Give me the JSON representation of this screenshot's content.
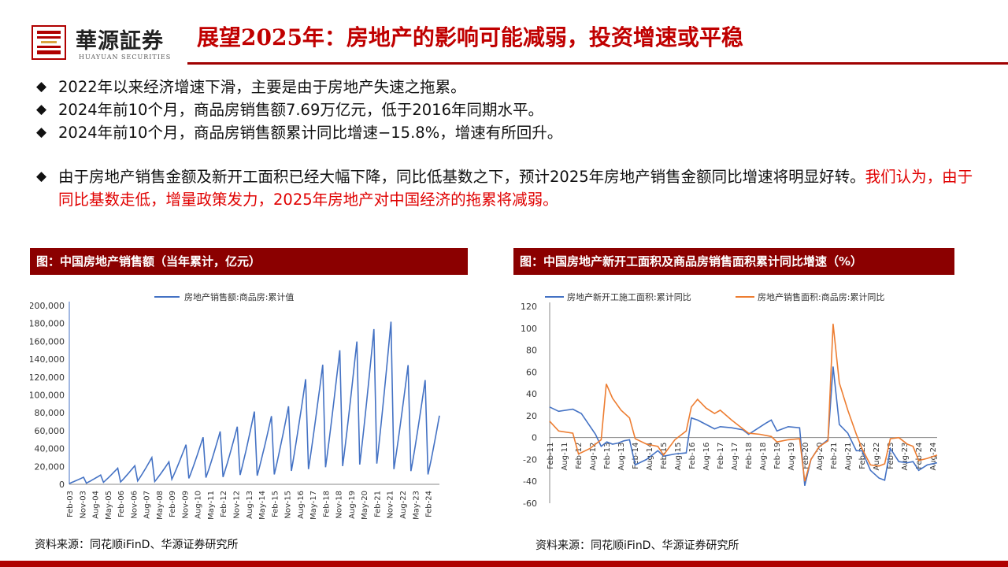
{
  "header": {
    "logo_cn": "華源証券",
    "logo_en": "HUAYUAN SECURITIES",
    "title": "展望2025年：房地产的影响可能减弱，投资增速或平稳",
    "accent_color": "#c00000"
  },
  "bullets": [
    {
      "text": "2022年以来经济增速下滑，主要是由于房地产失速之拖累。",
      "highlight": ""
    },
    {
      "text": "2024年前10个月，商品房销售额7.69万亿元，低于2016年同期水平。",
      "highlight": ""
    },
    {
      "text": "2024年前10个月，商品房销售额累计同比增速−15.8%，增速有所回升。",
      "highlight": ""
    },
    {
      "text": "由于房地产销售金额及新开工面积已经大幅下降，同比低基数之下，预计2025年房地产销售金额同比增速将明显好转。",
      "highlight": "我们认为，由于同比基数走低，增量政策发力，2025年房地产对中国经济的拖累将减弱。"
    }
  ],
  "bullet_marker": "◆",
  "left_chart": {
    "header": "图：中国房地产销售额（当年累计，亿元）",
    "source": "资料来源：同花顺iFinD、华源证券研究所"
  },
  "right_chart": {
    "header": "图：中国房地产新开工面积及商品房销售面积累计同比增速（%）",
    "source": "资料来源：同花顺iFinD、华源证券研究所"
  },
  "chart_data": [
    {
      "type": "line",
      "title": "",
      "series": [
        {
          "name": "房地产销售额:商品房:累计值",
          "color": "#4472c4",
          "peaks": [
            [
              2003,
              7956
            ],
            [
              2004,
              10376
            ],
            [
              2005,
              18080
            ],
            [
              2006,
              20826
            ],
            [
              2007,
              29889
            ],
            [
              2008,
              25068
            ],
            [
              2009,
              44355
            ],
            [
              2010,
              52721
            ],
            [
              2011,
              59119
            ],
            [
              2012,
              64456
            ],
            [
              2013,
              81428
            ],
            [
              2014,
              76292
            ],
            [
              2015,
              87281
            ],
            [
              2016,
              117627
            ],
            [
              2017,
              133701
            ],
            [
              2018,
              149973
            ],
            [
              2019,
              159725
            ],
            [
              2020,
              173613
            ],
            [
              2021,
              181930
            ],
            [
              2022,
              133308
            ],
            [
              2023,
              116622
            ],
            [
              2024,
              76855
            ]
          ]
        }
      ],
      "x_ticks": [
        "Feb-03",
        "Nov-03",
        "Aug-04",
        "May-05",
        "Feb-06",
        "Nov-06",
        "Aug-07",
        "May-08",
        "Feb-09",
        "Nov-09",
        "Aug-10",
        "May-11",
        "Feb-12",
        "Nov-12",
        "Aug-13",
        "May-14",
        "Feb-15",
        "Nov-15",
        "Aug-16",
        "May-17",
        "Feb-18",
        "Nov-18",
        "Aug-19",
        "May-20",
        "Feb-21",
        "Nov-21",
        "Aug-22",
        "May-23",
        "Feb-24"
      ],
      "y_ticks": [
        "0",
        "20,000",
        "40,000",
        "60,000",
        "80,000",
        "100,000",
        "120,000",
        "140,000",
        "160,000",
        "180,000",
        "200,000"
      ],
      "ylim": [
        0,
        200000
      ]
    },
    {
      "type": "line",
      "title": "",
      "series": [
        {
          "name": "房地产新开工施工面积:累计同比",
          "color": "#4472c4",
          "points": [
            [
              2011.08,
              28
            ],
            [
              2011.4,
              24
            ],
            [
              2011.9,
              26
            ],
            [
              2012.2,
              22
            ],
            [
              2012.7,
              3
            ],
            [
              2012.9,
              -8
            ],
            [
              2013.1,
              -4
            ],
            [
              2013.3,
              -6
            ],
            [
              2013.5,
              -5
            ],
            [
              2013.7,
              -3
            ],
            [
              2013.9,
              -2
            ],
            [
              2014.1,
              -25
            ],
            [
              2014.5,
              -20
            ],
            [
              2014.9,
              -12
            ],
            [
              2015.1,
              -17
            ],
            [
              2015.5,
              -15
            ],
            [
              2015.9,
              -14
            ],
            [
              2016.08,
              18
            ],
            [
              2016.3,
              16
            ],
            [
              2016.6,
              12
            ],
            [
              2016.9,
              8
            ],
            [
              2017.1,
              10
            ],
            [
              2017.5,
              9
            ],
            [
              2017.9,
              7
            ],
            [
              2018.1,
              3
            ],
            [
              2018.4,
              8
            ],
            [
              2018.7,
              13
            ],
            [
              2018.9,
              16
            ],
            [
              2019.1,
              6
            ],
            [
              2019.5,
              10
            ],
            [
              2019.9,
              9
            ],
            [
              2020.08,
              -44
            ],
            [
              2020.3,
              -20
            ],
            [
              2020.6,
              -8
            ],
            [
              2020.9,
              -2
            ],
            [
              2021.08,
              65
            ],
            [
              2021.3,
              12
            ],
            [
              2021.6,
              4
            ],
            [
              2021.9,
              -12
            ],
            [
              2022.1,
              -12
            ],
            [
              2022.4,
              -30
            ],
            [
              2022.7,
              -37
            ],
            [
              2022.9,
              -39
            ],
            [
              2023.1,
              -10
            ],
            [
              2023.4,
              -22
            ],
            [
              2023.7,
              -23
            ],
            [
              2023.9,
              -22
            ],
            [
              2024.1,
              -30
            ],
            [
              2024.4,
              -25
            ],
            [
              2024.75,
              -23
            ]
          ]
        },
        {
          "name": "房地产销售面积:商品房:累计同比",
          "color": "#ed7d31",
          "points": [
            [
              2011.08,
              15
            ],
            [
              2011.4,
              6
            ],
            [
              2011.9,
              4
            ],
            [
              2012.1,
              -15
            ],
            [
              2012.5,
              -10
            ],
            [
              2012.9,
              -2
            ],
            [
              2013.08,
              49
            ],
            [
              2013.3,
              36
            ],
            [
              2013.6,
              25
            ],
            [
              2013.9,
              18
            ],
            [
              2014.1,
              -1
            ],
            [
              2014.5,
              -6
            ],
            [
              2014.9,
              -8
            ],
            [
              2015.1,
              -16
            ],
            [
              2015.5,
              -2
            ],
            [
              2015.9,
              6
            ],
            [
              2016.08,
              28
            ],
            [
              2016.3,
              35
            ],
            [
              2016.6,
              27
            ],
            [
              2016.9,
              22
            ],
            [
              2017.1,
              25
            ],
            [
              2017.5,
              16
            ],
            [
              2017.9,
              8
            ],
            [
              2018.1,
              4
            ],
            [
              2018.5,
              3
            ],
            [
              2018.9,
              1
            ],
            [
              2019.1,
              -4
            ],
            [
              2019.5,
              -2
            ],
            [
              2019.9,
              -1
            ],
            [
              2020.08,
              -40
            ],
            [
              2020.3,
              -20
            ],
            [
              2020.6,
              -8
            ],
            [
              2020.9,
              -3
            ],
            [
              2021.08,
              104
            ],
            [
              2021.3,
              50
            ],
            [
              2021.6,
              25
            ],
            [
              2021.9,
              3
            ],
            [
              2022.1,
              -10
            ],
            [
              2022.4,
              -25
            ],
            [
              2022.7,
              -26
            ],
            [
              2022.9,
              -24
            ],
            [
              2023.1,
              -1
            ],
            [
              2023.4,
              0
            ],
            [
              2023.7,
              -6
            ],
            [
              2023.9,
              -8
            ],
            [
              2024.1,
              -21
            ],
            [
              2024.4,
              -19
            ],
            [
              2024.75,
              -16
            ]
          ]
        }
      ],
      "x_ticks": [
        "Feb-11",
        "Aug-11",
        "Feb-12",
        "Aug-12",
        "Feb-13",
        "Aug-13",
        "Feb-14",
        "Aug-14",
        "Feb-15",
        "Aug-15",
        "Feb-16",
        "Aug-16",
        "Feb-17",
        "Aug-17",
        "Feb-18",
        "Aug-18",
        "Feb-19",
        "Aug-19",
        "Feb-20",
        "Aug-20",
        "Feb-21",
        "Aug-21",
        "Feb-22",
        "Aug-22",
        "Feb-23",
        "Aug-23",
        "Feb-24",
        "Aug-24"
      ],
      "y_ticks": [
        "-60",
        "-40",
        "-20",
        "0",
        "20",
        "40",
        "60",
        "80",
        "100",
        "120"
      ],
      "ylim": [
        -60,
        120
      ]
    }
  ]
}
